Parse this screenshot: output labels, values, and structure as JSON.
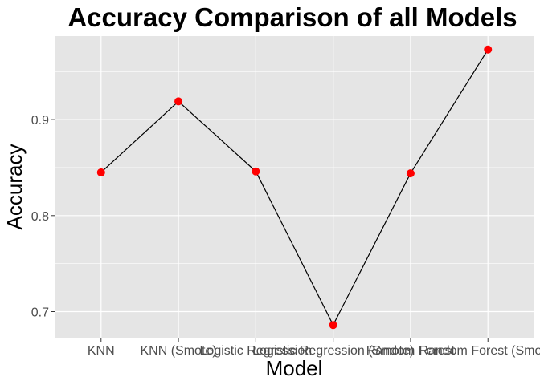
{
  "chart_data": {
    "type": "line",
    "title": "Accuracy Comparison of all Models",
    "xlabel": "Model",
    "ylabel": "Accuracy",
    "categories": [
      "KNN",
      "KNN (Smote)",
      "Logistic Regression",
      "Logistic Regression (Smote)",
      "Random Forest",
      "Random Forest (Smote)"
    ],
    "series": [
      {
        "values": [
          0.845,
          0.919,
          0.846,
          0.686,
          0.844,
          0.973
        ]
      }
    ],
    "yticks": [
      0.7,
      0.8,
      0.9
    ],
    "ytick_labels": [
      "0.7",
      "0.8",
      "0.9"
    ],
    "ylim": [
      0.672,
      0.987
    ],
    "grid": true,
    "legend": "none",
    "colors": {
      "panel_background": "#E5E5E5",
      "grid": "#FFFFFF",
      "line": "#000000",
      "point": "#FF0000",
      "tick_label": "#4D4D4D",
      "title": "#000000"
    }
  }
}
